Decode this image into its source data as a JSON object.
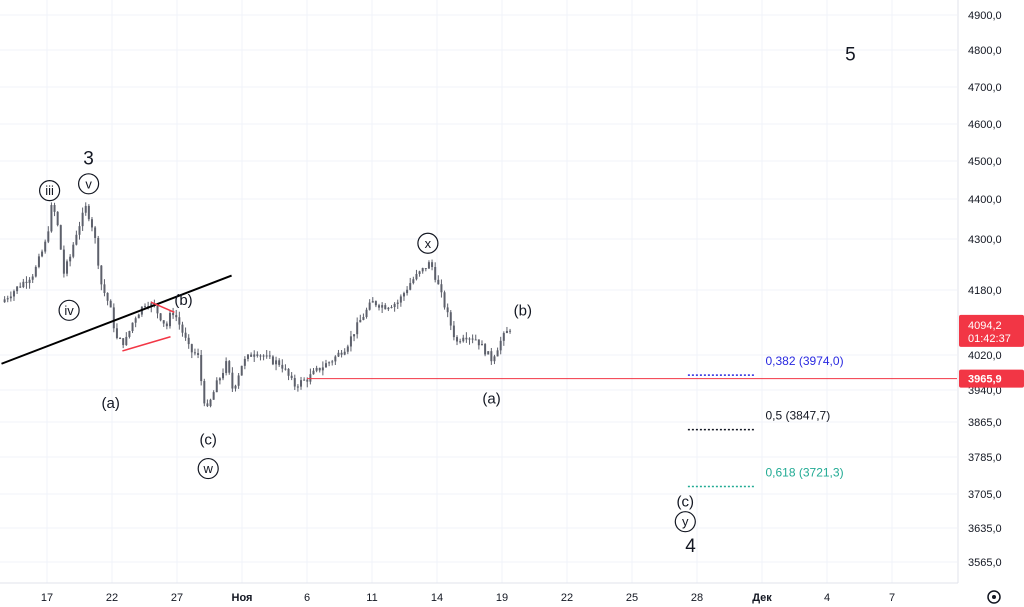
{
  "chart_data": {
    "type": "candlestick",
    "ylim": [
      3530,
      4960
    ],
    "y_ticks": [
      {
        "value": 4900,
        "label": "4900,0"
      },
      {
        "value": 4800,
        "label": "4800,0"
      },
      {
        "value": 4700,
        "label": "4700,0"
      },
      {
        "value": 4600,
        "label": "4600,0"
      },
      {
        "value": 4500,
        "label": "4500,0"
      },
      {
        "value": 4400,
        "label": "4400,0"
      },
      {
        "value": 4300,
        "label": "4300,0"
      },
      {
        "value": 4180,
        "label": "4180,0"
      },
      {
        "value": 4094.2,
        "label": "4094,2"
      },
      {
        "value": 4020,
        "label": "4020,0"
      },
      {
        "value": 3940,
        "label": "3940,0"
      },
      {
        "value": 3865,
        "label": "3865,0"
      },
      {
        "value": 3785,
        "label": "3785,0"
      },
      {
        "value": 3705,
        "label": "3705,0"
      },
      {
        "value": 3635,
        "label": "3635,0"
      },
      {
        "value": 3565,
        "label": "3565,0"
      }
    ],
    "x_ticks": [
      {
        "day": 0,
        "label": "17"
      },
      {
        "day": 5,
        "label": "22"
      },
      {
        "day": 10,
        "label": "27"
      },
      {
        "day": 15,
        "label": "Ноя"
      },
      {
        "day": 20,
        "label": "6"
      },
      {
        "day": 25,
        "label": "11"
      },
      {
        "day": 30,
        "label": "14"
      },
      {
        "day": 35,
        "label": "19"
      },
      {
        "day": 40,
        "label": "22"
      },
      {
        "day": 45,
        "label": "25"
      },
      {
        "day": 50,
        "label": "28"
      },
      {
        "day": 55,
        "label": "Дек"
      },
      {
        "day": 60,
        "label": "4"
      },
      {
        "day": 65,
        "label": "7"
      }
    ],
    "price_path": [
      [
        -3.5,
        4150
      ],
      [
        -2.5,
        4180
      ],
      [
        -1,
        4220
      ],
      [
        0,
        4300
      ],
      [
        0.3,
        4380
      ],
      [
        0.7,
        4360
      ],
      [
        1.3,
        4220
      ],
      [
        1.8,
        4260
      ],
      [
        2.2,
        4310
      ],
      [
        3,
        4380
      ],
      [
        3.6,
        4320
      ],
      [
        4.2,
        4190
      ],
      [
        4.6,
        4160
      ],
      [
        5,
        4120
      ],
      [
        5.3,
        4060
      ],
      [
        6,
        4050
      ],
      [
        6.7,
        4110
      ],
      [
        7.6,
        4150
      ],
      [
        8.2,
        4140
      ],
      [
        8.8,
        4110
      ],
      [
        9.2,
        4090
      ],
      [
        9.6,
        4130
      ],
      [
        10,
        4110
      ],
      [
        11,
        4030
      ],
      [
        11.6,
        4020
      ],
      [
        12,
        3930
      ],
      [
        12.3,
        3890
      ],
      [
        13,
        3950
      ],
      [
        13.8,
        4000
      ],
      [
        14.3,
        3940
      ],
      [
        15,
        4000
      ],
      [
        16,
        4030
      ],
      [
        17,
        4010
      ],
      [
        18,
        4000
      ],
      [
        19,
        3950
      ],
      [
        20,
        3965
      ],
      [
        21,
        3990
      ],
      [
        22,
        4010
      ],
      [
        23,
        4040
      ],
      [
        24,
        4100
      ],
      [
        25,
        4150
      ],
      [
        26,
        4140
      ],
      [
        27,
        4150
      ],
      [
        28,
        4200
      ],
      [
        29,
        4230
      ],
      [
        29.5,
        4245
      ],
      [
        30,
        4200
      ],
      [
        31,
        4100
      ],
      [
        31.5,
        4050
      ],
      [
        32,
        4070
      ],
      [
        33,
        4060
      ],
      [
        33.7,
        4030
      ],
      [
        34.2,
        4010
      ],
      [
        35,
        4060
      ],
      [
        35.8,
        4094
      ]
    ],
    "annotations": [
      {
        "text": "3",
        "day": 3.2,
        "price": 4510,
        "style": "wave"
      },
      {
        "text": "iii",
        "day": 0.2,
        "price": 4422,
        "style": "circled"
      },
      {
        "text": "v",
        "day": 3.2,
        "price": 4440,
        "style": "circled"
      },
      {
        "text": "iv",
        "day": 1.7,
        "price": 4130,
        "style": "circled"
      },
      {
        "text": "(b)",
        "day": 10.5,
        "price": 4155,
        "style": "label"
      },
      {
        "text": "(a)",
        "day": 4.9,
        "price": 3910,
        "style": "label"
      },
      {
        "text": "(c)",
        "day": 12.4,
        "price": 3825,
        "style": "label"
      },
      {
        "text": "w",
        "day": 12.4,
        "price": 3760,
        "style": "circled"
      },
      {
        "text": "x",
        "day": 29.3,
        "price": 4290,
        "style": "circled"
      },
      {
        "text": "(b)",
        "day": 36.6,
        "price": 4130,
        "style": "label"
      },
      {
        "text": "(a)",
        "day": 34.2,
        "price": 3920,
        "style": "label"
      },
      {
        "text": "(c)",
        "day": 49.1,
        "price": 3690,
        "style": "label"
      },
      {
        "text": "y",
        "day": 49.1,
        "price": 3648,
        "style": "circled"
      },
      {
        "text": "4",
        "day": 49.5,
        "price": 3600,
        "style": "wave"
      },
      {
        "text": "5",
        "day": 61.8,
        "price": 4790,
        "style": "wave"
      }
    ],
    "trendlines": [
      {
        "from": [
          -3.5,
          4000
        ],
        "to": [
          14.2,
          4214
        ],
        "color": "#000000"
      },
      {
        "from": [
          8,
          4150
        ],
        "to": [
          9.8,
          4125
        ],
        "color": "#f23645"
      },
      {
        "from": [
          5.8,
          4030
        ],
        "to": [
          9.5,
          4065
        ],
        "color": "#f23645"
      }
    ],
    "fib_levels": [
      {
        "label": "0,382 (3974,0)",
        "price": 3974.0,
        "color": "#2929e0",
        "from_day": 49.3,
        "to_day": 54.5
      },
      {
        "label": "0,5 (3847,7)",
        "price": 3847.7,
        "color": "#131722",
        "from_day": 49.3,
        "to_day": 54.5
      },
      {
        "label": "0,618 (3721,3)",
        "price": 3721.3,
        "color": "#22ab94",
        "from_day": 49.3,
        "to_day": 54.5
      }
    ],
    "support_line": {
      "price": 3965.9,
      "from_day": 20,
      "label": "3965,9",
      "color": "#f23645"
    },
    "last_price": {
      "value": 4094.2,
      "label": "4094,2",
      "countdown": "01:42:37",
      "color": "#f23645"
    },
    "grid": true
  }
}
